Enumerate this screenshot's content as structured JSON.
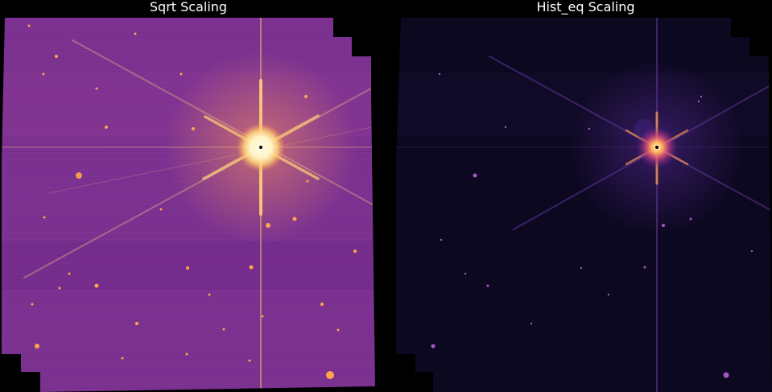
{
  "figure": {
    "background_color": "#000000",
    "panels": [
      {
        "title": "Sqrt Scaling",
        "colormap": "magma",
        "field_color": "#7a2f8f",
        "field_color_light": "#8b3a96",
        "field_color_dark": "#6a2584",
        "source_color": "#ffa54a",
        "star_core_color": "#fff8d6",
        "spike_color": "#ffd27a"
      },
      {
        "title": "Hist_eq Scaling",
        "colormap": "magma",
        "field_color": "#0c0820",
        "field_color_light": "#120c2a",
        "field_color_dark": "#07051a",
        "source_color": "#a854c8",
        "star_core_color": "#fff1c0",
        "spike_color": "#6a3aa8"
      }
    ]
  }
}
